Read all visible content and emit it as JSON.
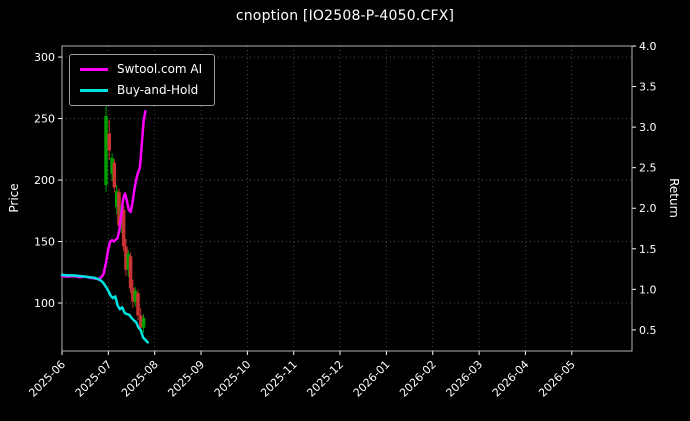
{
  "window": {
    "title": "cnoption [IO2508-P-4050.CFX]"
  },
  "chart_data": {
    "type": "line",
    "title": "cnoption [IO2508-P-4050.CFX]",
    "background": "#000000",
    "text_color": "#ffffff",
    "grid_color": "#5a5a5a",
    "spine_color": "#b4b4b4",
    "left_axis": {
      "label": "Price",
      "ticks": [
        100,
        150,
        200,
        250,
        300
      ],
      "range": [
        61,
        309
      ]
    },
    "right_axis": {
      "label": "Return",
      "ticks": [
        0.5,
        1.0,
        1.5,
        2.0,
        2.5,
        3.0,
        3.5,
        4.0
      ],
      "range": [
        0.24,
        4.0
      ]
    },
    "x_axis": {
      "tick_labels": [
        "2025-06",
        "2025-07",
        "2025-08",
        "2025-09",
        "2025-10",
        "2025-11",
        "2025-12",
        "2026-01",
        "2026-02",
        "2026-03",
        "2026-04",
        "2026-05"
      ],
      "tick_positions": [
        0,
        1,
        2,
        3,
        4,
        5,
        6,
        7,
        8,
        9,
        10,
        11
      ],
      "range": [
        0,
        12.3
      ]
    },
    "legend": {
      "position": "upper-left",
      "entries": [
        {
          "label": "Swtool.com AI",
          "color": "#ff00ff"
        },
        {
          "label": "Buy-and-Hold",
          "color": "#00e1e1"
        }
      ]
    },
    "series": [
      {
        "name": "Swtool.com AI",
        "color": "#ff00ff",
        "yaxis": "price",
        "x": [
          0,
          0.12,
          0.25,
          0.38,
          0.5,
          0.6,
          0.7,
          0.78,
          0.85,
          0.9,
          0.95,
          1.0,
          1.04,
          1.08,
          1.12,
          1.16,
          1.2,
          1.24,
          1.28,
          1.32,
          1.36,
          1.4,
          1.44,
          1.48,
          1.52,
          1.56,
          1.6,
          1.64,
          1.68,
          1.72,
          1.76,
          1.8
        ],
        "y": [
          122,
          121.5,
          122,
          121,
          121.5,
          120.5,
          120,
          119.5,
          121,
          124,
          133,
          144,
          150,
          151,
          150,
          151.5,
          153,
          160,
          172,
          185,
          189,
          183,
          176,
          174,
          181,
          192,
          200,
          206,
          210,
          228,
          248,
          256
        ]
      },
      {
        "name": "Buy-and-Hold",
        "color": "#00e1e1",
        "yaxis": "price",
        "x": [
          0,
          0.12,
          0.25,
          0.38,
          0.5,
          0.6,
          0.7,
          0.78,
          0.85,
          0.9,
          0.95,
          1.0,
          1.05,
          1.1,
          1.15,
          1.2,
          1.25,
          1.3,
          1.35,
          1.4,
          1.45,
          1.5,
          1.55,
          1.6,
          1.65,
          1.7,
          1.75,
          1.8,
          1.85
        ],
        "y": [
          123,
          122.5,
          122.5,
          122,
          121.5,
          121,
          120.5,
          119.5,
          118,
          116,
          113,
          110,
          106,
          104,
          105.5,
          98,
          95,
          96.5,
          92,
          91,
          90.5,
          88,
          86,
          84.5,
          80,
          78,
          72,
          70,
          68
        ]
      }
    ],
    "candles": {
      "color_up": "#00a000",
      "color_down": "#cc3333",
      "data": [
        [
          0.95,
          196,
          263,
          190,
          252
        ],
        [
          1.02,
          238,
          249,
          216,
          224
        ],
        [
          1.08,
          205,
          222,
          199,
          218
        ],
        [
          1.13,
          214,
          217,
          190,
          194
        ],
        [
          1.18,
          178,
          196,
          172,
          191
        ],
        [
          1.23,
          190,
          193,
          158,
          163
        ],
        [
          1.28,
          163,
          181,
          157,
          178
        ],
        [
          1.33,
          176,
          179,
          142,
          146
        ],
        [
          1.38,
          146,
          152,
          122,
          127
        ],
        [
          1.43,
          127,
          143,
          121,
          140
        ],
        [
          1.48,
          138,
          141,
          108,
          112
        ],
        [
          1.53,
          112,
          119,
          96,
          101
        ],
        [
          1.58,
          101,
          113,
          97,
          110
        ],
        [
          1.64,
          108,
          111,
          86,
          90
        ],
        [
          1.7,
          90,
          96,
          77,
          80
        ],
        [
          1.76,
          80,
          91,
          76,
          88
        ]
      ]
    }
  }
}
